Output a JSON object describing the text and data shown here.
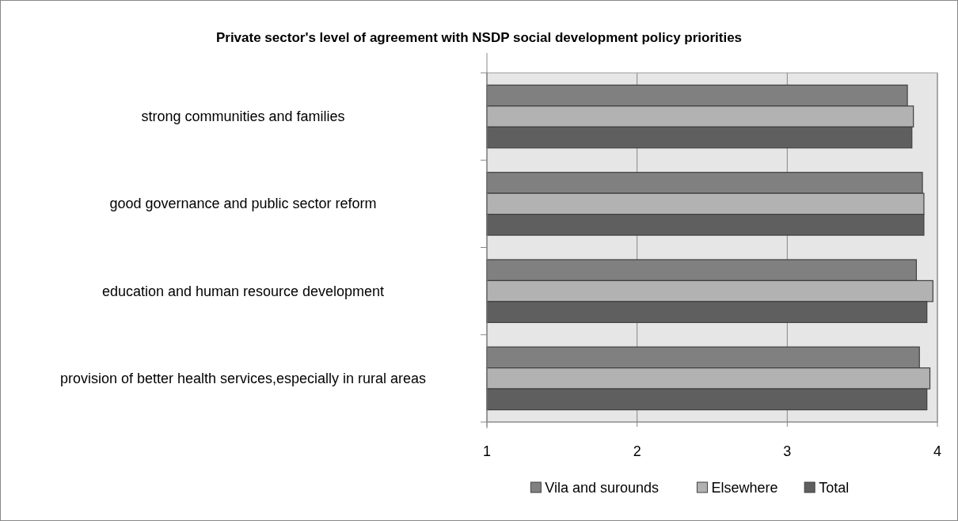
{
  "chart_data": {
    "type": "bar",
    "orientation": "horizontal",
    "title": "Private sector's level of agreement with NSDP social development policy priorities",
    "categories": [
      "strong communities and families",
      "good governance and public sector reform",
      "education and human resource development",
      "provision of better health services,especially in rural areas"
    ],
    "series": [
      {
        "name": "Vila and surounds",
        "color": "#808080",
        "values": [
          3.8,
          3.9,
          3.86,
          3.88
        ]
      },
      {
        "name": "Elsewhere",
        "color": "#b2b2b2",
        "values": [
          3.84,
          3.91,
          3.97,
          3.95
        ]
      },
      {
        "name": "Total",
        "color": "#5f5f5f",
        "values": [
          3.83,
          3.91,
          3.93,
          3.93
        ]
      }
    ],
    "xlim": [
      1,
      4
    ],
    "xticks": [
      1,
      2,
      3,
      4
    ],
    "grid": "x",
    "legend": "bottom"
  }
}
